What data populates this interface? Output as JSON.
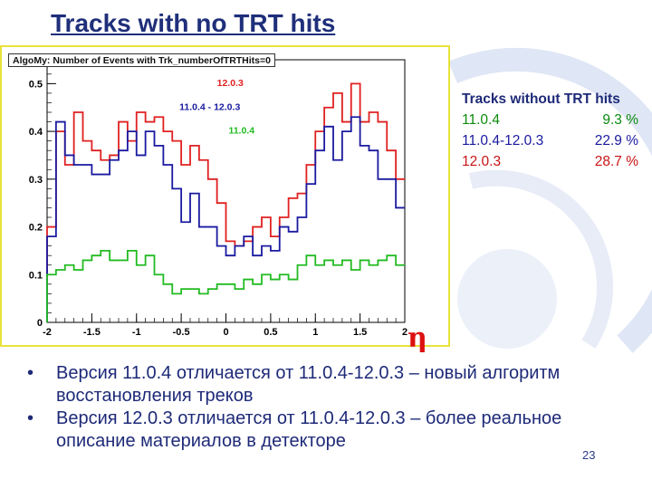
{
  "slide": {
    "title": "Tracks with no TRT hits",
    "page_number": "23"
  },
  "colors": {
    "title": "#1f2f7a",
    "red": "#e02020",
    "blue": "#1a1aa0",
    "green": "#22bb22",
    "text": "#1e2a78"
  },
  "summary": {
    "header": "Tracks without TRT hits",
    "rows": [
      {
        "label": "11.0.4",
        "value": "9.3 %",
        "color": "#0c8a0c"
      },
      {
        "label": "11.0.4-12.0.3",
        "value": "22.9 %",
        "color": "#1a1aa0"
      },
      {
        "label": "12.0.3",
        "value": "28.7 %",
        "color": "#c81414"
      }
    ]
  },
  "bullets": [
    "Версия 11.0.4 отличается от 11.0.4-12.0.3 – новый алгоритм восстановления треков",
    "Версия 12.0.3 отличается от 11.0.4-12.0.3 – более реальное описание материалов в детекторе"
  ],
  "chart_data": {
    "type": "line",
    "title": "AlgoMy: Number of Events with Trk_numberOfTRTHits=0",
    "xlabel": "η",
    "ylabel": "",
    "xlim": [
      -2,
      2
    ],
    "ylim": [
      0,
      0.55
    ],
    "x_ticks": [
      "-2",
      "-1.5",
      "-1",
      "-0.5",
      "0",
      "0.5",
      "1",
      "1.5",
      "2"
    ],
    "y_ticks": [
      "0",
      "0.1",
      "0.2",
      "0.3",
      "0.4",
      "0.5"
    ],
    "legend": [
      "12.0.3",
      "11.0.4 - 12.0.3",
      "11.0.4"
    ],
    "grid": false,
    "step": true,
    "bin_edges_start": -2.0,
    "bin_width": 0.1,
    "series": [
      {
        "name": "12.0.3",
        "color": "#e02020",
        "values": [
          0.2,
          0.4,
          0.33,
          0.44,
          0.38,
          0.36,
          0.34,
          0.35,
          0.42,
          0.38,
          0.44,
          0.42,
          0.43,
          0.4,
          0.38,
          0.33,
          0.37,
          0.34,
          0.3,
          0.25,
          0.17,
          0.16,
          0.17,
          0.2,
          0.22,
          0.18,
          0.22,
          0.26,
          0.27,
          0.33,
          0.4,
          0.45,
          0.48,
          0.42,
          0.5,
          0.42,
          0.44,
          0.42,
          0.36,
          0.3
        ]
      },
      {
        "name": "11.0.4 - 12.0.3",
        "color": "#1a1aa0",
        "values": [
          0.18,
          0.42,
          0.35,
          0.33,
          0.33,
          0.31,
          0.31,
          0.34,
          0.36,
          0.4,
          0.35,
          0.4,
          0.37,
          0.33,
          0.28,
          0.21,
          0.27,
          0.2,
          0.2,
          0.16,
          0.14,
          0.16,
          0.18,
          0.14,
          0.16,
          0.15,
          0.2,
          0.19,
          0.22,
          0.29,
          0.36,
          0.41,
          0.34,
          0.4,
          0.43,
          0.37,
          0.36,
          0.3,
          0.3,
          0.24
        ]
      },
      {
        "name": "11.0.4",
        "color": "#22bb22",
        "values": [
          0.1,
          0.11,
          0.12,
          0.11,
          0.13,
          0.14,
          0.15,
          0.13,
          0.13,
          0.15,
          0.12,
          0.14,
          0.1,
          0.08,
          0.06,
          0.07,
          0.07,
          0.06,
          0.07,
          0.08,
          0.08,
          0.07,
          0.09,
          0.08,
          0.1,
          0.09,
          0.1,
          0.09,
          0.12,
          0.14,
          0.12,
          0.13,
          0.12,
          0.13,
          0.11,
          0.13,
          0.12,
          0.13,
          0.14,
          0.12
        ]
      }
    ]
  }
}
